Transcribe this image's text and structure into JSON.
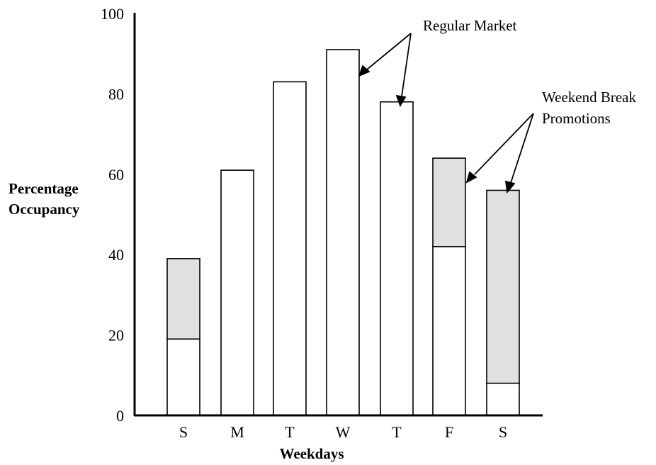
{
  "chart_data": {
    "type": "bar",
    "stacked": true,
    "categories": [
      "S",
      "M",
      "T",
      "W",
      "T",
      "F",
      "S"
    ],
    "series": [
      {
        "name": "Regular Market",
        "values": [
          19,
          61,
          83,
          91,
          78,
          42,
          8
        ],
        "color": "#ffffff"
      },
      {
        "name": "Weekend Break Promotions",
        "values": [
          20,
          0,
          0,
          0,
          0,
          22,
          48
        ],
        "color": "#e0e0e0"
      }
    ],
    "xlabel": "Weekdays",
    "ylabel_lines": [
      "Percentage",
      "Occupancy"
    ],
    "ylim": [
      0,
      100
    ],
    "yticks": [
      0,
      20,
      40,
      60,
      80,
      100
    ],
    "grid": false
  },
  "annotations": {
    "regular_market": "Regular Market",
    "weekend_break_lines": [
      "Weekend Break",
      "Promotions"
    ]
  }
}
